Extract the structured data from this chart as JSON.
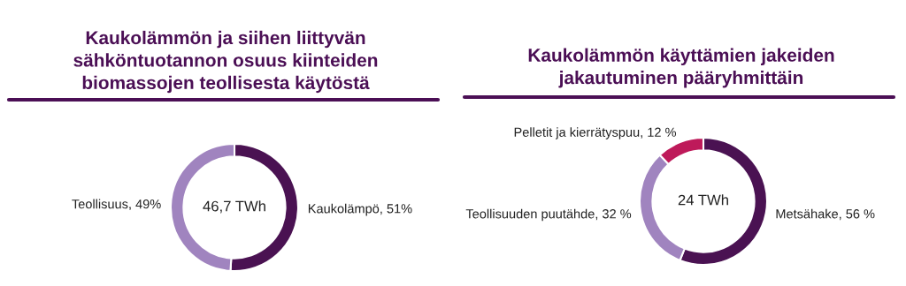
{
  "chart_data": [
    {
      "type": "donut",
      "title": "Kaukolämmön ja siihen liittyvän\nsähköntuotannon osuus kiinteiden\nbiomassojen teollisesta käytöstä",
      "categories": [
        "Kaukolämpö",
        "Teollisuus"
      ],
      "values": [
        51,
        49
      ],
      "value_labels": [
        "51%",
        "49%"
      ],
      "colors": [
        "#4a1252",
        "#a084bf"
      ],
      "annotations": [
        "46,7 TWh"
      ]
    },
    {
      "type": "donut",
      "title": "Kaukolämmön käyttämien jakeiden\njakautuminen pääryhmittäin",
      "categories": [
        "Metsähake",
        "Teollisuuden puutähde",
        "Pelletit ja kierrätyspuu"
      ],
      "values": [
        56,
        32,
        12
      ],
      "value_labels": [
        "56 %",
        "32 %",
        "12 %"
      ],
      "colors": [
        "#4a1252",
        "#a084bf",
        "#be1a5a"
      ],
      "annotations": [
        "24 TWh"
      ]
    }
  ]
}
